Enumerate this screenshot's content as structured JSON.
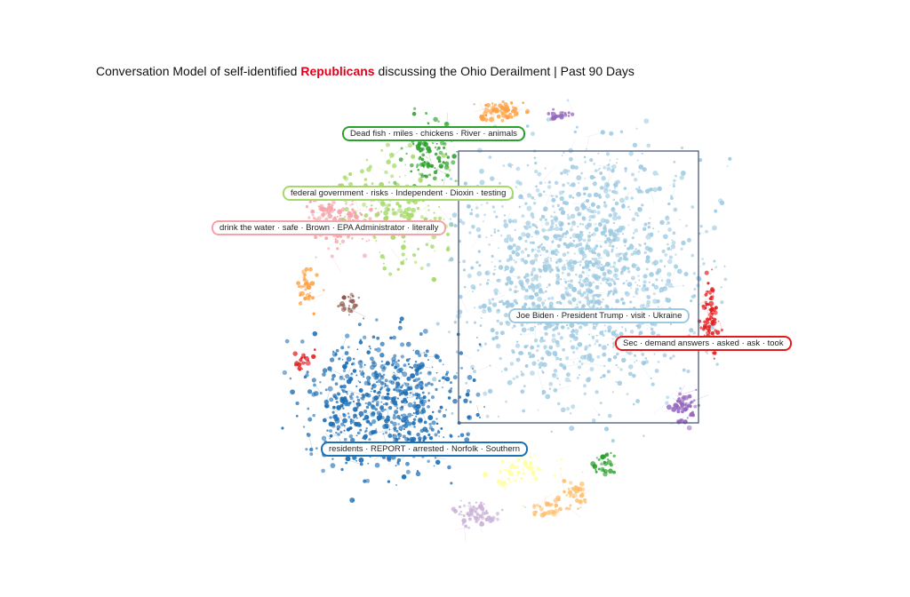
{
  "title": {
    "prefix": "Conversation Model of self-identified ",
    "highlight": "Republicans",
    "suffix": " discussing the Ohio Derailment | Past 90 Days",
    "highlight_color": "#e0001b"
  },
  "clusters": [
    {
      "id": "dark-green",
      "color": "#2ca02c",
      "label": "Dead fish · miles · chickens · River · animals"
    },
    {
      "id": "light-green",
      "color": "#a6d96a",
      "label": "federal government · risks · Independent · Dioxin · testing"
    },
    {
      "id": "pink",
      "color": "#f4a3a8",
      "label": "drink the water · safe · Brown · EPA Administrator · literally"
    },
    {
      "id": "light-blue",
      "color": "#9ecae1",
      "label": "Joe Biden · President Trump · visit · Ukraine"
    },
    {
      "id": "red",
      "color": "#e31a1c",
      "label": "Sec · demand answers · asked · ask · took"
    },
    {
      "id": "dark-blue",
      "color": "#1f6fb4",
      "label": "residents · REPORT · arrested · Norfolk · Southern"
    }
  ],
  "minor_cluster_colors": [
    "#ff9f40",
    "#9467bd",
    "#cab2d6",
    "#ffff99",
    "#8c564b",
    "#fdbf6f"
  ]
}
